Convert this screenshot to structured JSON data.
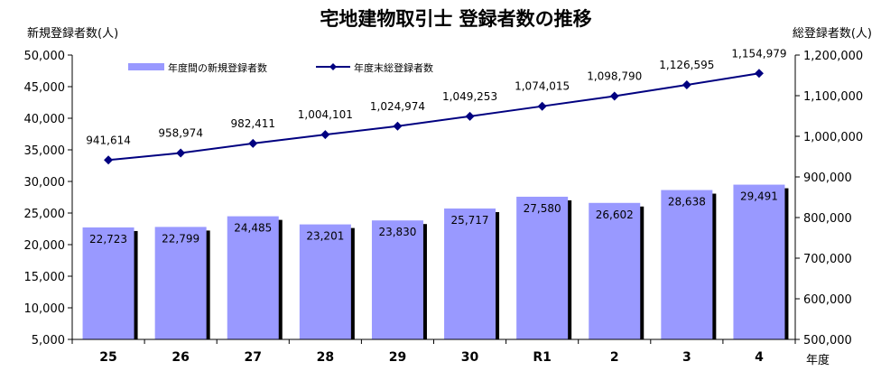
{
  "chart_data": {
    "type": "bar",
    "title": "宅地建物取引士 登録者数の推移",
    "ylabel": "新規登録者数(人)",
    "y2label": "総登録者数(人)",
    "xlabel": "年度",
    "categories": [
      "25",
      "26",
      "27",
      "28",
      "29",
      "30",
      "R1",
      "2",
      "3",
      "4"
    ],
    "ylim": [
      5000,
      50000
    ],
    "y2lim": [
      500000,
      1200000
    ],
    "yticks": [
      "50,000",
      "45,000",
      "40,000",
      "35,000",
      "30,000",
      "25,000",
      "20,000",
      "15,000",
      "10,000",
      "5,000"
    ],
    "y2ticks": [
      "1,200,000",
      "1,100,000",
      "1,000,000",
      "900,000",
      "800,000",
      "700,000",
      "600,000",
      "500,000"
    ],
    "series": [
      {
        "name": "年度間の新規登録者数",
        "type": "bar",
        "axis": "left",
        "color": "#9999ff",
        "values": [
          22723,
          22799,
          24485,
          23201,
          23830,
          25717,
          27580,
          26602,
          28638,
          29491
        ],
        "labels": [
          "22,723",
          "22,799",
          "24,485",
          "23,201",
          "23,830",
          "25,717",
          "27,580",
          "26,602",
          "28,638",
          "29,491"
        ]
      },
      {
        "name": "年度末総登録者数",
        "type": "line",
        "axis": "right",
        "color": "#000080",
        "values": [
          941614,
          958974,
          982411,
          1004101,
          1024974,
          1049253,
          1074015,
          1098790,
          1126595,
          1154979
        ],
        "labels": [
          "941,614",
          "958,974",
          "982,411",
          "1,004,101",
          "1,024,974",
          "1,049,253",
          "1,074,015",
          "1,098,790",
          "1,126,595",
          "1,154,979"
        ]
      }
    ],
    "legend_position": "top-left",
    "grid": false
  }
}
